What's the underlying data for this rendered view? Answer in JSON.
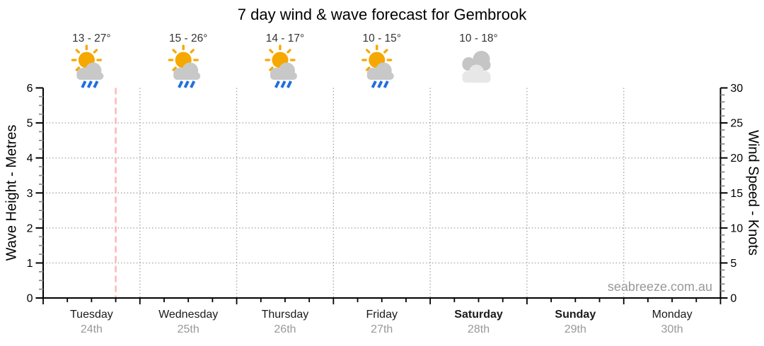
{
  "title": "7 day wind & wave forecast for Gembrook",
  "watermark": "seabreeze.com.au",
  "colors": {
    "axis": "#000000",
    "grid_dots": "#a3a3a3",
    "minor_tick": "#8c8c8c",
    "time_marker": "#ffb3b3",
    "day_label": "#1a1a1a",
    "date_label": "#999999",
    "temp_label": "#333333",
    "watermark": "#999999",
    "sun": "#f5a800",
    "cloud": "#c8c8c8",
    "cloud_dark": "#c5c5c5",
    "cloud_light": "#e7e7e7",
    "rain": "#1f6fe0"
  },
  "chart_data": {
    "type": "line",
    "title": "7 day wind & wave forecast for Gembrook",
    "series": [],
    "left_axis": {
      "label": "Wave Height - Metres",
      "min": 0,
      "max": 6,
      "major_step": 1,
      "minor_step": 0.25,
      "gridlines": [
        1,
        2,
        3,
        4,
        5
      ]
    },
    "right_axis": {
      "label": "Wind Speed - Knots",
      "min": 0,
      "max": 30,
      "major_step": 5,
      "minor_step": 1
    },
    "x_axis": {
      "unit": "day",
      "minor_divisions_per_day": 4,
      "day_boundary_gridlines": true
    },
    "days": [
      {
        "day": "Tuesday",
        "date": "24th",
        "bold": false,
        "temp_range": "13 - 27°",
        "icon": "sun-cloud-rain"
      },
      {
        "day": "Wednesday",
        "date": "25th",
        "bold": false,
        "temp_range": "15 - 26°",
        "icon": "sun-cloud-rain"
      },
      {
        "day": "Thursday",
        "date": "26th",
        "bold": false,
        "temp_range": "14 - 17°",
        "icon": "sun-cloud-rain"
      },
      {
        "day": "Friday",
        "date": "27th",
        "bold": false,
        "temp_range": "10 - 15°",
        "icon": "sun-cloud-rain"
      },
      {
        "day": "Saturday",
        "date": "28th",
        "bold": true,
        "temp_range": "10 - 18°",
        "icon": "clouds"
      },
      {
        "day": "Sunday",
        "date": "29th",
        "bold": true,
        "temp_range": null,
        "icon": null
      },
      {
        "day": "Monday",
        "date": "30th",
        "bold": false,
        "temp_range": null,
        "icon": null
      }
    ],
    "time_marker": {
      "day_index": 0,
      "fraction_of_day": 0.75,
      "style": "dashed"
    }
  }
}
